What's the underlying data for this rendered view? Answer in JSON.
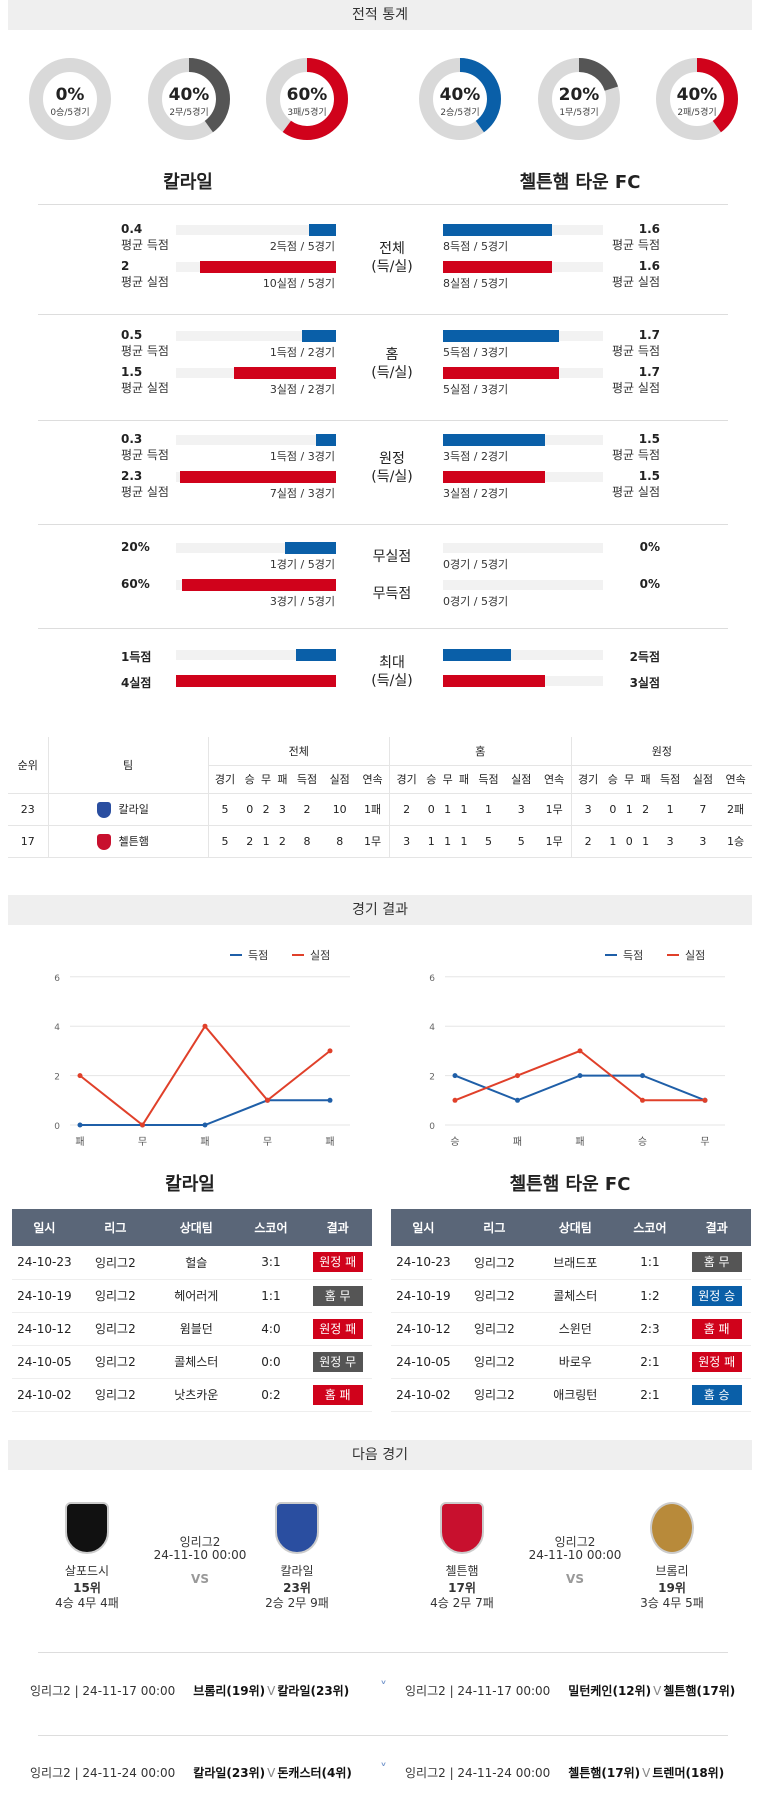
{
  "sections": {
    "stats": "전적 통계",
    "results": "경기 결과",
    "next": "다음 경기"
  },
  "teams": {
    "home": "칼라일",
    "away": "첼튼햄 타운 FC"
  },
  "donuts": [
    {
      "pct": "0%",
      "sub": "0승/5경기",
      "value": 0,
      "color": "#0a5fa8"
    },
    {
      "pct": "40%",
      "sub": "2무/5경기",
      "value": 0.4,
      "color": "#555555"
    },
    {
      "pct": "60%",
      "sub": "3패/5경기",
      "value": 0.6,
      "color": "#d0021b"
    },
    {
      "pct": "40%",
      "sub": "2승/5경기",
      "value": 0.4,
      "color": "#0a5fa8"
    },
    {
      "pct": "20%",
      "sub": "1무/5경기",
      "value": 0.2,
      "color": "#555555"
    },
    {
      "pct": "40%",
      "sub": "2패/5경기",
      "value": 0.4,
      "color": "#d0021b"
    }
  ],
  "labels": {
    "avg_scored": "평균 득점",
    "avg_conceded": "평균 실점"
  },
  "stat_groups": [
    {
      "center": [
        "전체",
        "(득/실)"
      ],
      "home": [
        {
          "val": "0.4",
          "txt": "2득점 / 5경기",
          "ratio": 0.1
        },
        {
          "val": "2",
          "txt": "10실점 / 5경기",
          "ratio": 0.5
        }
      ],
      "away": [
        {
          "val": "1.6",
          "txt": "8득점 / 5경기",
          "ratio": 0.4
        },
        {
          "val": "1.6",
          "txt": "8실점 / 5경기",
          "ratio": 0.4
        }
      ]
    },
    {
      "center": [
        "홈",
        "(득/실)"
      ],
      "home": [
        {
          "val": "0.5",
          "txt": "1득점 / 2경기",
          "ratio": 0.125
        },
        {
          "val": "1.5",
          "txt": "3실점 / 2경기",
          "ratio": 0.375
        }
      ],
      "away": [
        {
          "val": "1.7",
          "txt": "5득점 / 3경기",
          "ratio": 0.425
        },
        {
          "val": "1.7",
          "txt": "5실점 / 3경기",
          "ratio": 0.425
        }
      ]
    },
    {
      "center": [
        "원정",
        "(득/실)"
      ],
      "home": [
        {
          "val": "0.3",
          "txt": "1득점 / 3경기",
          "ratio": 0.075
        },
        {
          "val": "2.3",
          "txt": "7실점 / 3경기",
          "ratio": 0.575
        }
      ],
      "away": [
        {
          "val": "1.5",
          "txt": "3득점 / 2경기",
          "ratio": 0.375
        },
        {
          "val": "1.5",
          "txt": "3실점 / 2경기",
          "ratio": 0.375
        }
      ]
    }
  ],
  "clean": {
    "rows": [
      {
        "center": "무실점",
        "home_val": "20%",
        "home_txt": "1경기 / 5경기",
        "home_ratio": 0.2,
        "away_val": "0%",
        "away_txt": "0경기 / 5경기",
        "away_ratio": 0
      },
      {
        "center": "무득점",
        "home_val": "60%",
        "home_txt": "3경기 / 5경기",
        "home_ratio": 0.6,
        "away_val": "0%",
        "away_txt": "0경기 / 5경기",
        "away_ratio": 0
      }
    ]
  },
  "max": {
    "center": [
      "최대",
      "(득/실)"
    ],
    "home": [
      {
        "val": "1득점",
        "ratio": 0.25
      },
      {
        "val": "4실점",
        "ratio": 1
      }
    ],
    "away": [
      {
        "val": "2득점",
        "ratio": 0.5
      },
      {
        "val": "3실점",
        "ratio": 0.75
      }
    ]
  },
  "ranking": {
    "groups": [
      "전체",
      "홈",
      "원정"
    ],
    "cols": [
      "순위",
      "팀"
    ],
    "sub": [
      "경기",
      "승",
      "무",
      "패",
      "득점",
      "실점",
      "연속"
    ],
    "rows": [
      {
        "rank": "23",
        "team": "칼라일",
        "all": [
          "5",
          "0",
          "2",
          "3",
          "2",
          "10",
          "1패"
        ],
        "home": [
          "2",
          "0",
          "1",
          "1",
          "1",
          "3",
          "1무"
        ],
        "away": [
          "3",
          "0",
          "1",
          "2",
          "1",
          "7",
          "2패"
        ]
      },
      {
        "rank": "17",
        "team": "첼튼햄",
        "all": [
          "5",
          "2",
          "1",
          "2",
          "8",
          "8",
          "1무"
        ],
        "home": [
          "3",
          "1",
          "1",
          "1",
          "5",
          "5",
          "1무"
        ],
        "away": [
          "2",
          "1",
          "0",
          "1",
          "3",
          "3",
          "1승"
        ]
      }
    ]
  },
  "chart_data": [
    {
      "type": "line",
      "title": "칼라일",
      "categories": [
        "패",
        "무",
        "패",
        "무",
        "패"
      ],
      "ylim": [
        0,
        6
      ],
      "yticks": [
        0,
        2,
        4,
        6
      ],
      "series": [
        {
          "name": "득점",
          "color": "#1f5fa8",
          "values": [
            0,
            0,
            0,
            1,
            1
          ]
        },
        {
          "name": "실점",
          "color": "#e0402a",
          "values": [
            2,
            0,
            4,
            1,
            3
          ]
        }
      ]
    },
    {
      "type": "line",
      "title": "첼튼햄 타운 FC",
      "categories": [
        "승",
        "패",
        "패",
        "승",
        "무"
      ],
      "ylim": [
        0,
        6
      ],
      "yticks": [
        0,
        2,
        4,
        6
      ],
      "series": [
        {
          "name": "득점",
          "color": "#1f5fa8",
          "values": [
            2,
            1,
            2,
            2,
            1
          ]
        },
        {
          "name": "실점",
          "color": "#e0402a",
          "values": [
            1,
            2,
            3,
            1,
            1
          ]
        }
      ]
    }
  ],
  "results_head": [
    "일시",
    "리그",
    "상대팀",
    "스코어",
    "결과"
  ],
  "results": {
    "home": [
      {
        "date": "24-10-23",
        "league": "잉리그2",
        "opp": "헐슬",
        "score": "3:1",
        "result": "원정 패",
        "cls": "b-red"
      },
      {
        "date": "24-10-19",
        "league": "잉리그2",
        "opp": "헤어러게",
        "score": "1:1",
        "result": "홈 무",
        "cls": "b-gray"
      },
      {
        "date": "24-10-12",
        "league": "잉리그2",
        "opp": "윔블던",
        "score": "4:0",
        "result": "원정 패",
        "cls": "b-red"
      },
      {
        "date": "24-10-05",
        "league": "잉리그2",
        "opp": "콜체스터",
        "score": "0:0",
        "result": "원정 무",
        "cls": "b-gray"
      },
      {
        "date": "24-10-02",
        "league": "잉리그2",
        "opp": "낫츠카운",
        "score": "0:2",
        "result": "홈 패",
        "cls": "b-red"
      }
    ],
    "away": [
      {
        "date": "24-10-23",
        "league": "잉리그2",
        "opp": "브래드포",
        "score": "1:1",
        "result": "홈 무",
        "cls": "b-gray"
      },
      {
        "date": "24-10-19",
        "league": "잉리그2",
        "opp": "콜체스터",
        "score": "1:2",
        "result": "원정 승",
        "cls": "b-blue"
      },
      {
        "date": "24-10-12",
        "league": "잉리그2",
        "opp": "스윈던",
        "score": "2:3",
        "result": "홈 패",
        "cls": "b-red"
      },
      {
        "date": "24-10-05",
        "league": "잉리그2",
        "opp": "바로우",
        "score": "2:1",
        "result": "원정 패",
        "cls": "b-red"
      },
      {
        "date": "24-10-02",
        "league": "잉리그2",
        "opp": "애크링턴",
        "score": "2:1",
        "result": "홈 승",
        "cls": "b-blue"
      }
    ]
  },
  "next_games": [
    {
      "league": "잉리그2",
      "date": "24-11-10 00:00",
      "vs": "VS",
      "left": {
        "name": "살포드시",
        "rank": "15위",
        "rec": "4승 4무 4패"
      },
      "right": {
        "name": "칼라일",
        "rank": "23위",
        "rec": "2승 2무 9패"
      }
    },
    {
      "league": "잉리그2",
      "date": "24-11-10 00:00",
      "vs": "VS",
      "left": {
        "name": "첼튼햄",
        "rank": "17위",
        "rec": "4승 2무 7패"
      },
      "right": {
        "name": "브롬리",
        "rank": "19위",
        "rec": "3승 4무 5패"
      }
    }
  ],
  "upcoming": [
    {
      "left": "잉리그2 | 24-11-17 00:00",
      "teams_l": "브롬리(19위)",
      "v": "V",
      "teams_r": "칼라일(23위)"
    },
    {
      "left": "잉리그2 | 24-11-17 00:00",
      "teams_l": "밀턴케인(12위)",
      "v": "V",
      "teams_r": "첼튼햄(17위)"
    },
    {
      "left": "잉리그2 | 24-11-24 00:00",
      "teams_l": "칼라일(23위)",
      "v": "V",
      "teams_r": "돈캐스터(4위)"
    },
    {
      "left": "잉리그2 | 24-11-24 00:00",
      "teams_l": "첼튼햄(17위)",
      "v": "V",
      "teams_r": "트렌머(18위)"
    }
  ]
}
